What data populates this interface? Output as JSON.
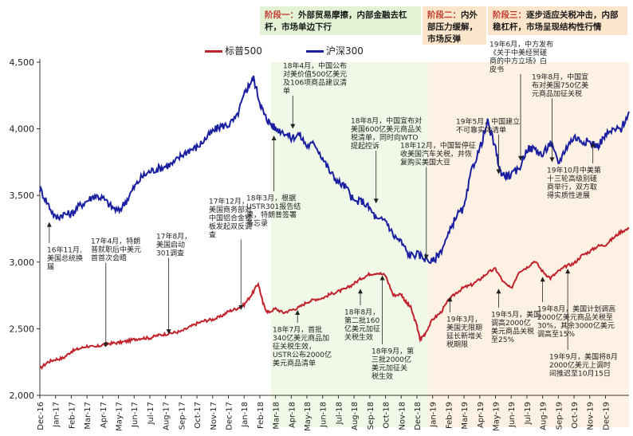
{
  "phases": [
    {
      "label": "阶段一：",
      "text": "外部贸易摩擦，内部金融去杠杆，市场单边下行"
    },
    {
      "label": "阶段二：",
      "text": "内外部压力缓解，市场反弹"
    },
    {
      "label": "阶段三：",
      "text": "逐步适应关税冲击，内部稳杠杆，市场呈现结构性行情"
    }
  ],
  "colors": {
    "sp500": "#c0222c",
    "hs300": "#1a1fa0",
    "phase1_bg": "#e3f2d5",
    "phase2_bg": "#fbe6cc",
    "phase3_bg": "#fbe6cc"
  },
  "chart_data": {
    "type": "line",
    "ylim": [
      2000,
      4500
    ],
    "yticks": [
      2000,
      2500,
      3000,
      3500,
      4000,
      4500
    ],
    "ytick_labels": [
      "2,000",
      "2,500",
      "3,000",
      "3,500",
      "4,000",
      "4,500"
    ],
    "xlim": [
      0,
      37.5
    ],
    "x_tick_labels": [
      "Dec-16",
      "Jan-17",
      "Feb-17",
      "Mar-17",
      "Apr-17",
      "May-17",
      "Jun-17",
      "Jul-17",
      "Aug-17",
      "Sep-17",
      "Oct-17",
      "Nov-17",
      "Dec-17",
      "Jan-18",
      "Feb-18",
      "Mar-18",
      "Apr-18",
      "May-18",
      "Jun-18",
      "Jul-18",
      "Aug-18",
      "Sep-18",
      "Oct-18",
      "Nov-18",
      "Dec-18",
      "Jan-19",
      "Feb-19",
      "Mar-19",
      "Apr-19",
      "May-19",
      "Jun-19",
      "Jul-19",
      "Aug-19",
      "Sep-19",
      "Oct-19",
      "Nov-19",
      "Dec-19"
    ],
    "shade": [
      {
        "from": 14.7,
        "to": 24.7,
        "phase": 1
      },
      {
        "from": 24.7,
        "to": 37.5,
        "phase": 2
      }
    ],
    "series": [
      {
        "name": "标普500",
        "x": [
          0,
          0.5,
          1,
          1.5,
          2,
          2.5,
          3,
          3.5,
          4,
          4.5,
          5,
          5.5,
          6,
          6.5,
          7,
          7.5,
          8,
          8.5,
          9,
          9.5,
          10,
          10.5,
          11,
          11.5,
          12,
          12.5,
          13,
          13.5,
          13.9,
          14.2,
          14.5,
          15,
          15.5,
          16,
          16.5,
          17,
          17.5,
          18,
          18.5,
          19,
          19.5,
          20,
          20.5,
          21,
          21.5,
          22,
          22.5,
          23,
          23.3,
          23.6,
          24,
          24.2,
          24.5,
          25,
          25.5,
          26,
          26.5,
          27,
          27.5,
          28,
          28.5,
          29,
          29.5,
          30,
          30.5,
          31,
          31.5,
          32,
          32.5,
          33,
          33.5,
          34,
          34.5,
          35,
          35.5,
          36,
          36.5,
          37,
          37.5
        ],
        "values": [
          2200,
          2250,
          2270,
          2280,
          2330,
          2350,
          2370,
          2360,
          2380,
          2390,
          2395,
          2405,
          2420,
          2430,
          2430,
          2450,
          2460,
          2470,
          2480,
          2510,
          2540,
          2560,
          2570,
          2590,
          2630,
          2650,
          2680,
          2760,
          2840,
          2690,
          2620,
          2650,
          2620,
          2640,
          2660,
          2700,
          2720,
          2730,
          2760,
          2780,
          2800,
          2840,
          2880,
          2910,
          2920,
          2900,
          2750,
          2760,
          2700,
          2660,
          2520,
          2420,
          2460,
          2570,
          2620,
          2710,
          2770,
          2810,
          2830,
          2870,
          2920,
          2950,
          2850,
          2800,
          2930,
          2960,
          3010,
          2930,
          2880,
          2930,
          2970,
          2990,
          3050,
          3080,
          3120,
          3130,
          3180,
          3230,
          3250
        ]
      },
      {
        "name": "沪深300",
        "x": [
          0,
          0.5,
          1,
          1.5,
          2,
          2.5,
          3,
          3.5,
          4,
          4.5,
          5,
          5.5,
          6,
          6.5,
          7,
          7.5,
          8,
          8.5,
          9,
          9.5,
          10,
          10.5,
          11,
          11.5,
          12,
          12.5,
          13,
          13.3,
          13.6,
          14,
          14.3,
          14.6,
          15,
          15.5,
          16,
          16.5,
          17,
          17.5,
          18,
          18.5,
          19,
          19.5,
          20,
          20.5,
          21,
          21.5,
          22,
          22.5,
          23,
          23.5,
          24,
          24.5,
          25,
          25.5,
          26,
          26.5,
          27,
          27.5,
          28,
          28.5,
          29,
          29.3,
          29.6,
          30,
          30.5,
          31,
          31.5,
          32,
          32.5,
          33,
          33.5,
          34,
          34.5,
          35,
          35.5,
          36,
          36.5,
          37,
          37.5
        ],
        "values": [
          3550,
          3440,
          3330,
          3360,
          3360,
          3420,
          3460,
          3500,
          3480,
          3420,
          3380,
          3460,
          3560,
          3640,
          3680,
          3700,
          3720,
          3740,
          3800,
          3840,
          3860,
          3920,
          3980,
          4020,
          4030,
          4080,
          4250,
          4330,
          4380,
          4200,
          4100,
          4050,
          4000,
          3980,
          3930,
          3960,
          3870,
          3890,
          3780,
          3670,
          3600,
          3560,
          3450,
          3460,
          3400,
          3310,
          3320,
          3200,
          3150,
          3050,
          3060,
          3030,
          3000,
          3080,
          3200,
          3350,
          3400,
          3700,
          3850,
          4050,
          3850,
          3680,
          3650,
          3650,
          3700,
          3850,
          3850,
          3800,
          3900,
          3740,
          3860,
          3940,
          3910,
          3900,
          3870,
          3950,
          3990,
          4000,
          4130
        ]
      }
    ],
    "annotations": [
      {
        "series": 1,
        "x": 0.6,
        "value": 3300,
        "lines": [
          "16年11月,",
          "美国总统换",
          "届"
        ]
      },
      {
        "series": 0,
        "x": 4.2,
        "value": 2360,
        "lines": [
          "17年4月，特朗",
          "普就职后中美元",
          "首首次会晤"
        ]
      },
      {
        "series": 0,
        "x": 8.2,
        "value": 2460,
        "lines": [
          "17年8月，",
          "美国启动",
          "301调查"
        ]
      },
      {
        "series": 0,
        "x": 12.8,
        "value": 2640,
        "lines": [
          "17年12月，",
          "美国商务部对",
          "中国铝合金钢",
          "板发起双反调",
          "查"
        ]
      },
      {
        "series": 1,
        "x": 14.9,
        "value": 3950,
        "lines": [
          "18年3月，根据",
          "USTR301报告结",
          "果，特朗普签署",
          "备忘录"
        ]
      },
      {
        "series": 1,
        "x": 16.1,
        "value": 4000,
        "lines": [
          "18年4月，中国公布",
          "对美价值500亿美元",
          "及106项商品建议清",
          "单"
        ]
      },
      {
        "series": 1,
        "x": 21.4,
        "value": 3440,
        "lines": [
          "18年8月，中国宣布对",
          "美国600亿美元商品关",
          "税清单，同时向WTO",
          "提起控诉"
        ]
      },
      {
        "series": 1,
        "x": 24.6,
        "value": 3020,
        "lines": [
          "18年12月，中国暂停征",
          "收美国汽车关税，并恢",
          "复购买美国大豆"
        ]
      },
      {
        "series": 1,
        "x": 29.2,
        "value": 3660,
        "lines": [
          "19年5月，中国建立",
          "不可靠实体清单"
        ]
      },
      {
        "series": 1,
        "x": 30.6,
        "value": 3760,
        "lines": [
          "19年6月，中方发布",
          "《关于中美经贸磋",
          "商的中方立场》白",
          "皮书"
        ]
      },
      {
        "series": 1,
        "x": 32.6,
        "value": 3750,
        "lines": [
          "19年8月，中国宣",
          "布对美国750亿美",
          "元商品加征关税"
        ]
      },
      {
        "series": 1,
        "x": 35.2,
        "value": 3900,
        "lines": [
          "19年10月中美第",
          "十三轮高级别磋",
          "商举行，双方取",
          "得实质性进展"
        ]
      },
      {
        "series": 0,
        "x": 16.4,
        "value": 2640,
        "lines": [
          "18年7月，首批",
          "340亿美元商品加",
          "征关税生效，",
          "USTR公布2000亿",
          "美元商品清单"
        ]
      },
      {
        "series": 0,
        "x": 20.4,
        "value": 2800,
        "lines": [
          "18年8月，",
          "第二批160",
          "亿美元加征",
          "关税生效"
        ]
      },
      {
        "series": 0,
        "x": 21.8,
        "value": 2900,
        "lines": [
          "18年9月，第",
          "三批2000亿",
          "美元加征关",
          "税生效"
        ]
      },
      {
        "series": 0,
        "x": 26.1,
        "value": 2740,
        "lines": [
          "19年3月，",
          "美国无限期",
          "延长新增关",
          "税期限"
        ]
      },
      {
        "series": 0,
        "x": 29.2,
        "value": 2800,
        "lines": [
          "19年5月，美国",
          "调高2000亿",
          "美元商品关税",
          "至25%"
        ]
      },
      {
        "series": 0,
        "x": 32.0,
        "value": 2890,
        "lines": [
          "19年8月，美国计划调高",
          "2000亿美元商品关税至",
          "30%，其余3000亿美元",
          "调高至15%"
        ]
      },
      {
        "series": 0,
        "x": 33.6,
        "value": 2950,
        "lines": [
          "19年9月，美国将8月",
          "2000亿美元上调时",
          "间推迟至10月15日"
        ]
      }
    ]
  }
}
